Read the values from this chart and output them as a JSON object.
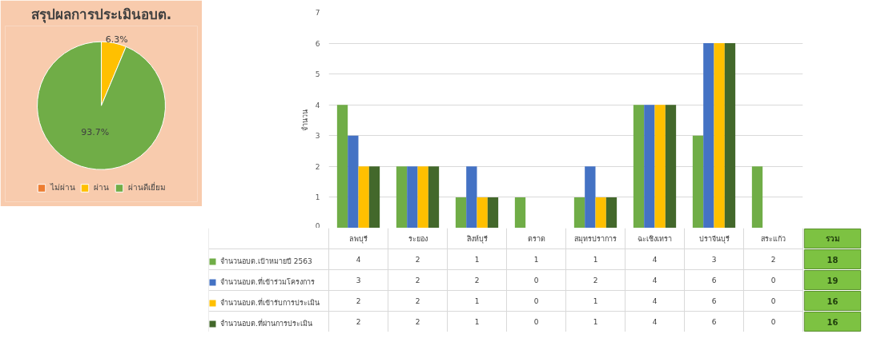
{
  "chart_data": [
    {
      "type": "pie",
      "title": "สรุปผลการประเมินอบต.",
      "categories": [
        "ไม่ผ่าน",
        "ผ่าน",
        "ผ่านดีเยี่ยม"
      ],
      "values": [
        0,
        6.3,
        93.7
      ],
      "colors": [
        "#ed7d31",
        "#ffc000",
        "#70ad47"
      ],
      "value_labels": [
        null,
        "6.3%",
        "93.7%"
      ],
      "legend": "bottom"
    },
    {
      "type": "bar",
      "ylabel": "จำนวน",
      "categories": [
        "ลพบุรี",
        "ระยอง",
        "สิงห์บุรี",
        "ตราด",
        "สมุทรปราการ",
        "ฉะเชิงเทรา",
        "ปราจีนบุรี",
        "สระแก้ว"
      ],
      "series": [
        {
          "name": "จำนวนอบต.เป้าหมายปี 2563",
          "color": "#70ad47",
          "values": [
            4,
            2,
            1,
            1,
            1,
            4,
            3,
            2
          ]
        },
        {
          "name": "จำนวนอบต.ที่เข้าร่วมโครงการ",
          "color": "#4472c4",
          "values": [
            3,
            2,
            2,
            0,
            2,
            4,
            6,
            0
          ]
        },
        {
          "name": "จำนวนอบต.ที่เข้ารับการประเมิน",
          "color": "#ffc000",
          "values": [
            2,
            2,
            1,
            0,
            1,
            4,
            6,
            0
          ]
        },
        {
          "name": "จำนวนอบต.ที่ผ่านการประเมิน",
          "color": "#43682b",
          "values": [
            2,
            2,
            1,
            0,
            1,
            4,
            6,
            0
          ]
        }
      ],
      "ylim": [
        0,
        7
      ],
      "yticks": [
        0,
        1,
        2,
        3,
        4,
        5,
        6,
        7
      ],
      "grid": "y",
      "data_labels": true,
      "legend": "bottom",
      "annotations": [
        "รวม",
        "18",
        "19",
        "16",
        "16"
      ]
    }
  ]
}
